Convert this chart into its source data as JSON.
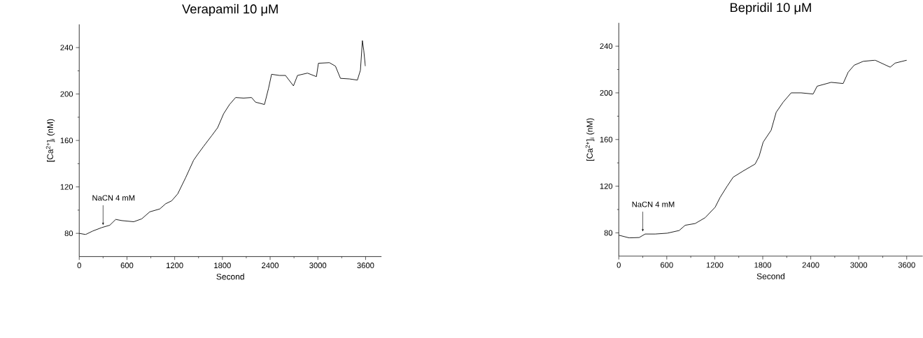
{
  "chart_data": [
    {
      "type": "line",
      "title": "Verapamil 10 μM",
      "xlabel": "Second",
      "ylabel": "[Ca$^{2+}$]$_{i}$ (nM)",
      "color": "#000000",
      "x": [
        0,
        80,
        170,
        284,
        384,
        459,
        535,
        685,
        786,
        886,
        1012,
        1087,
        1162,
        1238,
        1338,
        1438,
        1489,
        1564,
        1664,
        1740,
        1815,
        1890,
        1966,
        2066,
        2166,
        2216,
        2329,
        2380,
        2418,
        2518,
        2593,
        2693,
        2744,
        2869,
        2982,
        3007,
        3145,
        3221,
        3284,
        3397,
        3497,
        3535,
        3560,
        3577,
        3597
      ],
      "values": [
        80,
        79,
        82,
        85,
        87,
        92,
        91,
        90,
        92.5,
        98.5,
        101,
        105.5,
        108,
        114,
        128,
        143,
        148,
        155,
        164,
        171,
        183,
        191,
        197,
        196.5,
        197,
        193,
        191,
        205,
        217,
        216,
        216,
        207,
        216,
        218,
        215,
        226.5,
        227,
        224,
        213.5,
        213,
        212,
        220.5,
        246,
        237.5,
        224
      ],
      "xlim": [
        0,
        3800
      ],
      "ylim": [
        60,
        260
      ],
      "xticks": [
        0,
        600,
        1200,
        1800,
        2400,
        3000,
        3600
      ],
      "yticks": [
        80,
        120,
        160,
        200,
        240
      ],
      "annotations": [
        {
          "text": "NaCN 4 mM",
          "x": 300,
          "y": 85
        }
      ]
    },
    {
      "type": "line",
      "title": "Bepridil 10 μM",
      "xlabel": "Second",
      "ylabel": "[Ca$^{2+}$]$_{i}$ (nM)",
      "color": "#000000",
      "x": [
        0,
        130,
        255,
        330,
        455,
        605,
        755,
        830,
        955,
        1080,
        1205,
        1268,
        1355,
        1430,
        1555,
        1705,
        1755,
        1805,
        1905,
        1968,
        2055,
        2155,
        2280,
        2430,
        2480,
        2655,
        2805,
        2868,
        2943,
        3055,
        3205,
        3393,
        3455,
        3600
      ],
      "values": [
        78,
        75.7,
        76,
        79,
        79,
        79.7,
        82,
        86.5,
        88,
        93,
        102,
        110.5,
        120,
        127.7,
        133,
        139,
        145.7,
        157.7,
        168,
        183.4,
        192,
        200,
        200,
        199,
        205.7,
        209,
        208,
        217.7,
        223.7,
        227,
        228,
        222,
        225.5,
        228
      ],
      "xlim": [
        0,
        3800
      ],
      "ylim": [
        60,
        260
      ],
      "xticks": [
        0,
        600,
        1200,
        1800,
        2400,
        3000,
        3600
      ],
      "yticks": [
        80,
        120,
        160,
        200,
        240
      ],
      "annotations": [
        {
          "text": "NaCN 4 mM",
          "x": 300,
          "y": 79
        }
      ]
    }
  ]
}
